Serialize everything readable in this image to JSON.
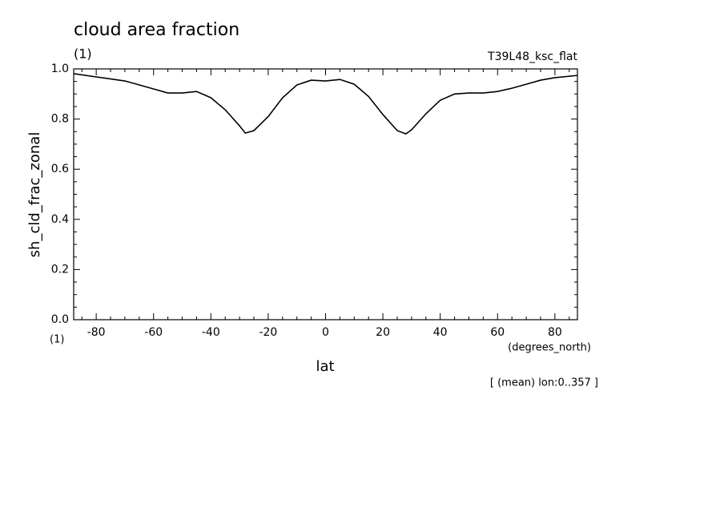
{
  "chart_data": {
    "type": "line",
    "title": "cloud area fraction",
    "title_unit": "(1)",
    "subtitle": "T39L48_ksc_flat",
    "ylabel": "sh_cld_frac_zonal",
    "y_unit": "(1)",
    "xlabel": "lat",
    "x_unit": "(degrees_north)",
    "annotation": "[ (mean) lon:0..357 ]",
    "xlim": [
      -87.86,
      87.86
    ],
    "ylim": [
      0,
      1
    ],
    "xticks": [
      -80,
      -60,
      -40,
      -20,
      0,
      20,
      40,
      60,
      80
    ],
    "yticks": [
      {
        "value": 0,
        "label": "0.0"
      },
      0.2,
      0.4,
      0.6,
      0.8,
      {
        "value": 1,
        "label": "1.0"
      }
    ],
    "x": [
      -87.86,
      -80,
      -70,
      -60,
      -55,
      -50,
      -45,
      -40,
      -35,
      -30,
      -28,
      -25,
      -20,
      -15,
      -10,
      -5,
      0,
      5,
      10,
      15,
      20,
      25,
      28,
      30,
      35,
      40,
      45,
      50,
      55,
      60,
      65,
      70,
      75,
      80,
      87.86
    ],
    "series": [
      {
        "color": "#000000",
        "values": [
          0.981,
          0.968,
          0.952,
          0.92,
          0.904,
          0.904,
          0.91,
          0.885,
          0.837,
          0.773,
          0.744,
          0.754,
          0.81,
          0.885,
          0.936,
          0.955,
          0.952,
          0.958,
          0.939,
          0.89,
          0.818,
          0.754,
          0.741,
          0.757,
          0.821,
          0.875,
          0.9,
          0.904,
          0.904,
          0.91,
          0.923,
          0.939,
          0.955,
          0.965,
          0.974
        ]
      }
    ]
  }
}
